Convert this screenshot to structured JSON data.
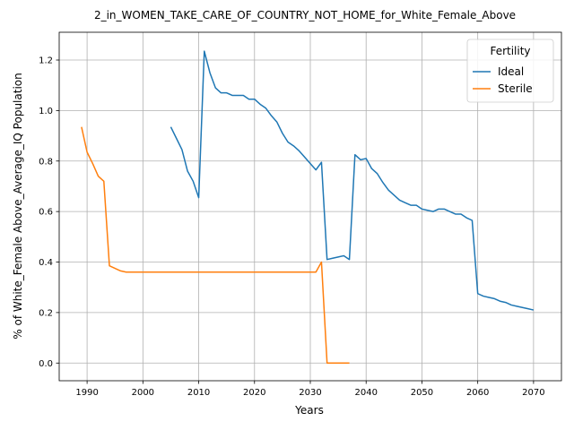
{
  "chart_data": {
    "type": "line",
    "title": "2_in_WOMEN_TAKE_CARE_OF_COUNTRY_NOT_HOME_for_White_Female_Above",
    "xlabel": "Years",
    "ylabel": "% of White_Female Above_Average_IQ Population",
    "xlim": [
      1985,
      2075
    ],
    "ylim": [
      -0.07,
      1.31
    ],
    "xticks": [
      1990,
      2000,
      2010,
      2020,
      2030,
      2040,
      2050,
      2060,
      2070
    ],
    "yticks": [
      0.0,
      0.2,
      0.4,
      0.6,
      0.8,
      1.0,
      1.2
    ],
    "ytick_labels": [
      "0.0",
      "0.2",
      "0.4",
      "0.6",
      "0.8",
      "1.0",
      "1.2"
    ],
    "grid": true,
    "legend": {
      "title": "Fertility",
      "placement": "top-right"
    },
    "series": [
      {
        "name": "Ideal",
        "color": "#1f77b4",
        "x": [
          2005,
          2006,
          2007,
          2008,
          2009,
          2010,
          2011,
          2012,
          2013,
          2014,
          2015,
          2016,
          2017,
          2018,
          2019,
          2020,
          2021,
          2022,
          2023,
          2024,
          2025,
          2026,
          2027,
          2028,
          2029,
          2030,
          2031,
          2032,
          2033,
          2034,
          2035,
          2036,
          2037,
          2038,
          2039,
          2040,
          2041,
          2042,
          2043,
          2044,
          2045,
          2046,
          2047,
          2048,
          2049,
          2050,
          2051,
          2052,
          2053,
          2054,
          2055,
          2056,
          2057,
          2058,
          2059,
          2060,
          2061,
          2062,
          2063,
          2064,
          2065,
          2066,
          2067,
          2068,
          2069,
          2070
        ],
        "y": [
          0.935,
          0.89,
          0.845,
          0.76,
          0.72,
          0.655,
          1.235,
          1.15,
          1.09,
          1.07,
          1.07,
          1.06,
          1.06,
          1.06,
          1.045,
          1.045,
          1.025,
          1.01,
          0.98,
          0.955,
          0.91,
          0.875,
          0.86,
          0.84,
          0.815,
          0.79,
          0.765,
          0.795,
          0.41,
          0.415,
          0.42,
          0.425,
          0.41,
          0.825,
          0.805,
          0.81,
          0.77,
          0.75,
          0.715,
          0.685,
          0.665,
          0.645,
          0.635,
          0.625,
          0.625,
          0.61,
          0.605,
          0.6,
          0.61,
          0.61,
          0.6,
          0.59,
          0.59,
          0.575,
          0.565,
          0.275,
          0.265,
          0.26,
          0.255,
          0.245,
          0.24,
          0.23,
          0.225,
          0.22,
          0.215,
          0.21
        ]
      },
      {
        "name": "Sterile",
        "color": "#ff7f0e",
        "x": [
          1989,
          1990,
          1991,
          1992,
          1993,
          1994,
          1995,
          1996,
          1997,
          1998,
          1999,
          2000,
          2005,
          2010,
          2015,
          2020,
          2025,
          2030,
          2031,
          2032,
          2033,
          2034,
          2035,
          2036,
          2037
        ],
        "y": [
          0.935,
          0.835,
          0.79,
          0.74,
          0.72,
          0.385,
          0.375,
          0.365,
          0.36,
          0.36,
          0.36,
          0.36,
          0.36,
          0.36,
          0.36,
          0.36,
          0.36,
          0.36,
          0.36,
          0.4,
          0.0,
          0.0,
          0.0,
          0.0,
          0.0
        ]
      }
    ]
  }
}
